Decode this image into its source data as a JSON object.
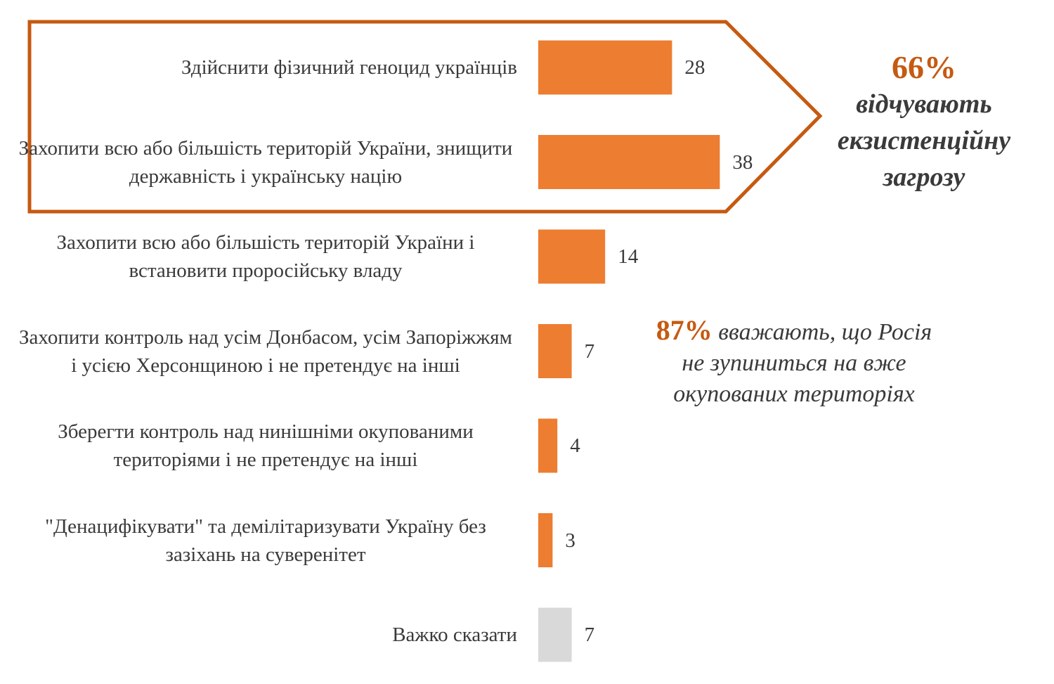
{
  "chart_data": {
    "type": "bar",
    "orientation": "horizontal",
    "categories": [
      "Здійснити фізичний геноцид українців",
      "Захопити всю або більшість територій України, знищити державність і українську націю",
      "Захопити всю або більшість територій України і встановити проросійську владу",
      "Захопити контроль над усім Донбасом, усім Запоріжжям і усією Херсонщиною і не претендує на інші",
      "Зберегти контроль над нинішніми окупованими територіями і не претендує на інші",
      "\"Денацифікувати\" та демілітаризувати Україну без зазіхань на суверенітет",
      "Важко сказати"
    ],
    "values": [
      28,
      38,
      14,
      7,
      4,
      3,
      7
    ],
    "bar_colors": [
      "#ed7d31",
      "#ed7d31",
      "#ed7d31",
      "#ed7d31",
      "#ed7d31",
      "#ed7d31",
      "#d9d9d9"
    ],
    "xlim": [
      0,
      40
    ],
    "grid": false,
    "legend": "none",
    "highlight_group": {
      "categories": [
        0,
        1
      ],
      "outline_color": "#c55a11"
    }
  },
  "callouts": {
    "existential": {
      "percent": "66%",
      "text": "відчувають екзистенційну загрозу",
      "color": "#c55a11"
    },
    "not_stop": {
      "percent": "87%",
      "text": "вважають, що Росія не зупиниться на вже окупованих територіях",
      "color": "#c55a11"
    }
  }
}
